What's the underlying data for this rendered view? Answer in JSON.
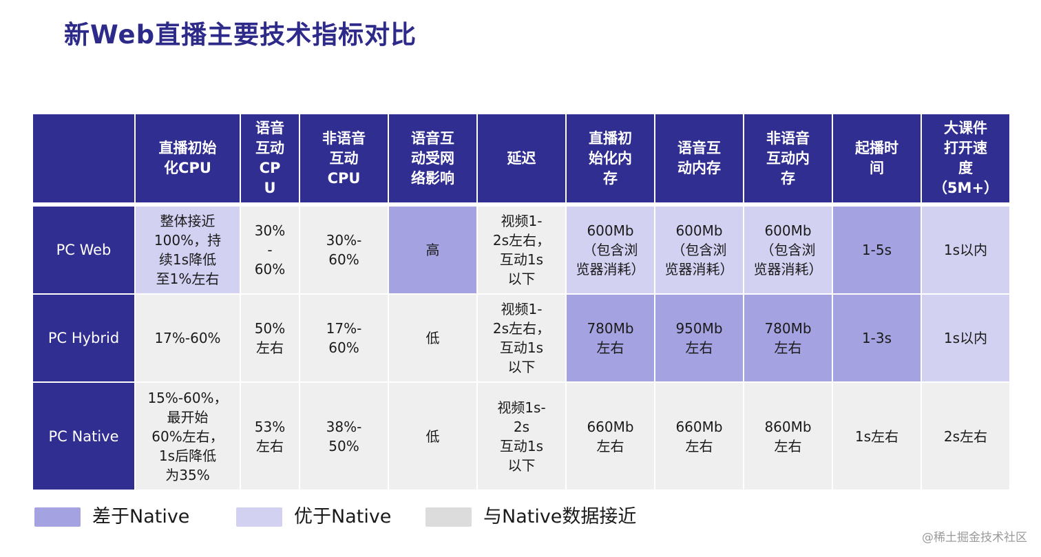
{
  "title": "新Web直播主要技术指标对比",
  "colors": {
    "header_bg": "#312e91",
    "worse_than_native": "#a4a2e0",
    "better_than_native": "#d3d1f2",
    "close_to_native": "#efefef"
  },
  "table": {
    "headers": [
      "",
      "直播初始\n化CPU",
      "语音\n互动\nCP\nU",
      "非语音\n互动\nCPU",
      "语音互\n动受网\n络影响",
      "延迟",
      "直播初\n始化内\n存",
      "语音互\n动内存",
      "非语音\n互动内\n存",
      "起播时\n间",
      "大课件\n打开速\n度\n（5M+）"
    ],
    "rows": [
      {
        "label": "PC Web",
        "cells": [
          {
            "text": "整体接近\n100%，持\n续1s降低\n至1%左右",
            "status": "better"
          },
          {
            "text": "30%\n-\n60%",
            "status": "near"
          },
          {
            "text": "30%-\n60%",
            "status": "near"
          },
          {
            "text": "高",
            "status": "worse"
          },
          {
            "text": "视频1-\n2s左右，\n互动1s\n以下",
            "status": "near"
          },
          {
            "text": "600Mb\n（包含浏\n览器消耗）",
            "status": "better"
          },
          {
            "text": "600Mb\n（包含浏\n览器消耗）",
            "status": "better"
          },
          {
            "text": "600Mb\n（包含浏\n览器消耗）",
            "status": "better"
          },
          {
            "text": "1-5s",
            "status": "worse"
          },
          {
            "text": "1s以内",
            "status": "better"
          }
        ]
      },
      {
        "label": "PC Hybrid",
        "cells": [
          {
            "text": "17%-60%",
            "status": "near"
          },
          {
            "text": "50%\n左右",
            "status": "near"
          },
          {
            "text": "17%-\n60%",
            "status": "near"
          },
          {
            "text": "低",
            "status": "near"
          },
          {
            "text": "视频1-\n2s左右，\n互动1s\n以下",
            "status": "near"
          },
          {
            "text": "780Mb\n左右",
            "status": "worse"
          },
          {
            "text": "950Mb\n左右",
            "status": "worse"
          },
          {
            "text": "780Mb\n左右",
            "status": "worse"
          },
          {
            "text": "1-3s",
            "status": "worse"
          },
          {
            "text": "1s以内",
            "status": "better"
          }
        ]
      },
      {
        "label": "PC Native",
        "cells": [
          {
            "text": "15%-60%，\n最开始\n60%左右，\n1s后降低\n为35%",
            "status": "near"
          },
          {
            "text": "53%\n左右",
            "status": "near"
          },
          {
            "text": "38%-\n50%",
            "status": "near"
          },
          {
            "text": "低",
            "status": "near"
          },
          {
            "text": "视频1s-\n2s\n互动1s\n以下",
            "status": "near"
          },
          {
            "text": "660Mb\n左右",
            "status": "near"
          },
          {
            "text": "660Mb\n左右",
            "status": "near"
          },
          {
            "text": "860Mb\n左右",
            "status": "near"
          },
          {
            "text": "1s左右",
            "status": "near"
          },
          {
            "text": "2s左右",
            "status": "near"
          }
        ]
      }
    ]
  },
  "legend": [
    {
      "label": "差于Native",
      "status": "worse"
    },
    {
      "label": "优于Native",
      "status": "better"
    },
    {
      "label": "与Native数据接近",
      "status": "near"
    }
  ],
  "watermark": "@稀土掘金技术社区"
}
